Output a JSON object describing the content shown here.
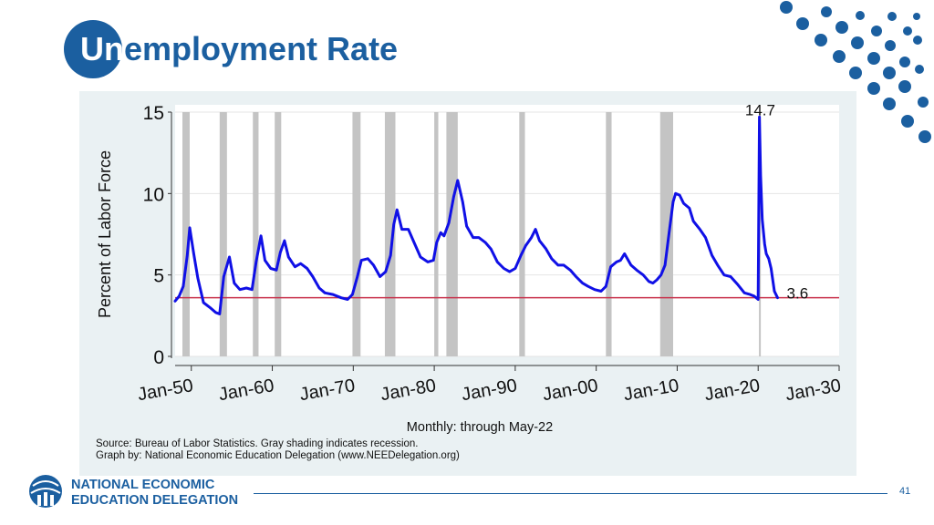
{
  "slide": {
    "title_lead": "Un",
    "title_rest": "employment Rate",
    "page_number": "41"
  },
  "logo": {
    "line1": "NATIONAL ECONOMIC",
    "line2": "EDUCATION DELEGATION",
    "icon": "globe-people-icon"
  },
  "colors": {
    "brand_blue": "#1b5fa0",
    "series_line": "#1010e6",
    "reference_line": "#c8304a",
    "recession_shade": "#c4c4c4"
  },
  "chart_data": {
    "type": "line",
    "ylabel": "Percent of Labor Force",
    "xlabel": "Monthly: through May-22",
    "source": "Source: Bureau of Labor Statistics. Gray shading indicates recession.",
    "credit": "Graph by: National Economic Education Delegation (www.NEEDelegation.org)",
    "xlim": [
      1948,
      2030
    ],
    "ylim": [
      0,
      15
    ],
    "x_ticks": [
      1950,
      1960,
      1970,
      1980,
      1990,
      2000,
      2010,
      2020,
      2030
    ],
    "x_tick_labels": [
      "Jan-50",
      "Jan-60",
      "Jan-70",
      "Jan-80",
      "Jan-90",
      "Jan-00",
      "Jan-10",
      "Jan-20",
      "Jan-30"
    ],
    "y_ticks": [
      0,
      5,
      10,
      15
    ],
    "y_tick_labels": [
      "0",
      "5",
      "10",
      "15"
    ],
    "grid": true,
    "recessions": [
      [
        1948.9,
        1949.8
      ],
      [
        1953.5,
        1954.4
      ],
      [
        1957.6,
        1958.3
      ],
      [
        1960.3,
        1961.1
      ],
      [
        1969.9,
        1970.9
      ],
      [
        1973.9,
        1975.2
      ],
      [
        1980.0,
        1980.5
      ],
      [
        1981.5,
        1982.9
      ],
      [
        1990.5,
        1991.2
      ],
      [
        2001.2,
        2001.9
      ],
      [
        2007.9,
        2009.5
      ],
      [
        2020.1,
        2020.3
      ]
    ],
    "reference_line": {
      "y": 3.6
    },
    "annotations": [
      {
        "text": "14.7",
        "x": 2020.3,
        "y": 14.7
      },
      {
        "text": "3.6",
        "x": 2022.4,
        "y": 3.6
      }
    ],
    "series": [
      {
        "x": [
          1948.0,
          1948.5,
          1949.0,
          1949.5,
          1949.8,
          1950.3,
          1950.8,
          1951.5,
          1952.3,
          1953.0,
          1953.5,
          1954.0,
          1954.7,
          1955.3,
          1956.0,
          1956.8,
          1957.5,
          1958.0,
          1958.6,
          1959.1,
          1959.8,
          1960.5,
          1961.0,
          1961.5,
          1962.0,
          1962.8,
          1963.5,
          1964.3,
          1965.0,
          1965.8,
          1966.5,
          1967.5,
          1968.5,
          1969.3,
          1969.9,
          1970.5,
          1971.0,
          1971.8,
          1972.5,
          1973.3,
          1974.0,
          1974.6,
          1975.0,
          1975.4,
          1976.0,
          1976.8,
          1977.5,
          1978.3,
          1979.2,
          1979.9,
          1980.3,
          1980.8,
          1981.2,
          1981.8,
          1982.4,
          1982.9,
          1983.5,
          1984.0,
          1984.8,
          1985.5,
          1986.3,
          1987.0,
          1987.8,
          1988.6,
          1989.3,
          1990.0,
          1990.7,
          1991.3,
          1992.0,
          1992.5,
          1993.0,
          1993.8,
          1994.5,
          1995.3,
          1996.0,
          1996.8,
          1997.5,
          1998.3,
          1999.0,
          1999.8,
          2000.6,
          2001.2,
          2001.8,
          2002.5,
          2003.0,
          2003.5,
          2004.3,
          2005.0,
          2005.8,
          2006.5,
          2007.0,
          2007.5,
          2008.0,
          2008.5,
          2009.0,
          2009.5,
          2009.8,
          2010.3,
          2010.8,
          2011.5,
          2012.0,
          2012.8,
          2013.5,
          2014.3,
          2015.0,
          2015.8,
          2016.6,
          2017.5,
          2018.3,
          2019.0,
          2019.5,
          2020.0,
          2020.15,
          2020.3,
          2020.5,
          2020.8,
          2021.0,
          2021.3,
          2021.6,
          2022.0,
          2022.4
        ],
        "values": [
          3.4,
          3.7,
          4.3,
          6.2,
          7.9,
          6.3,
          4.8,
          3.3,
          3.0,
          2.7,
          2.6,
          4.9,
          6.1,
          4.5,
          4.1,
          4.2,
          4.1,
          5.8,
          7.4,
          5.9,
          5.4,
          5.3,
          6.4,
          7.1,
          6.1,
          5.5,
          5.7,
          5.4,
          4.9,
          4.2,
          3.9,
          3.8,
          3.6,
          3.5,
          3.8,
          4.9,
          5.9,
          6.0,
          5.6,
          4.9,
          5.2,
          6.2,
          8.1,
          9.0,
          7.8,
          7.8,
          7.0,
          6.1,
          5.8,
          5.9,
          7.0,
          7.6,
          7.4,
          8.2,
          9.8,
          10.8,
          9.5,
          8.0,
          7.3,
          7.3,
          7.0,
          6.6,
          5.8,
          5.4,
          5.2,
          5.4,
          6.2,
          6.8,
          7.3,
          7.8,
          7.1,
          6.6,
          6.0,
          5.6,
          5.6,
          5.3,
          4.9,
          4.5,
          4.3,
          4.1,
          4.0,
          4.3,
          5.5,
          5.8,
          5.9,
          6.3,
          5.6,
          5.3,
          5.0,
          4.6,
          4.5,
          4.7,
          5.0,
          5.6,
          7.6,
          9.5,
          10.0,
          9.9,
          9.4,
          9.1,
          8.3,
          7.8,
          7.3,
          6.2,
          5.6,
          5.0,
          4.9,
          4.4,
          3.9,
          3.8,
          3.7,
          3.5,
          14.7,
          11.1,
          8.4,
          6.9,
          6.3,
          6.0,
          5.4,
          4.0,
          3.6
        ]
      }
    ]
  }
}
